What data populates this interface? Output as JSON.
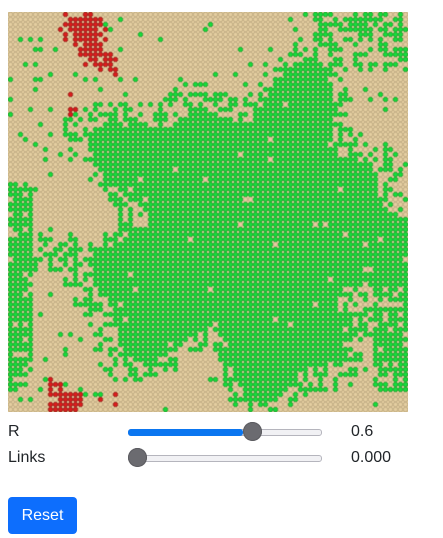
{
  "simulation": {
    "colors": {
      "empty": "#e6cfa1",
      "empty_outline": "#b8a47c",
      "tree": "#14e03a",
      "tree_outline": "#0a9a23",
      "fire": "#e01c1c",
      "fire_outline": "#8a0f0f"
    }
  },
  "controls": {
    "r": {
      "label": "R",
      "value_text": "0.6",
      "fraction": 0.6
    },
    "links": {
      "label": "Links",
      "value_text": "0.000",
      "fraction": 0.0
    },
    "accent_color": "#0b76f0"
  },
  "buttons": {
    "reset_label": "Reset",
    "reset_color": "#0d6efd"
  }
}
